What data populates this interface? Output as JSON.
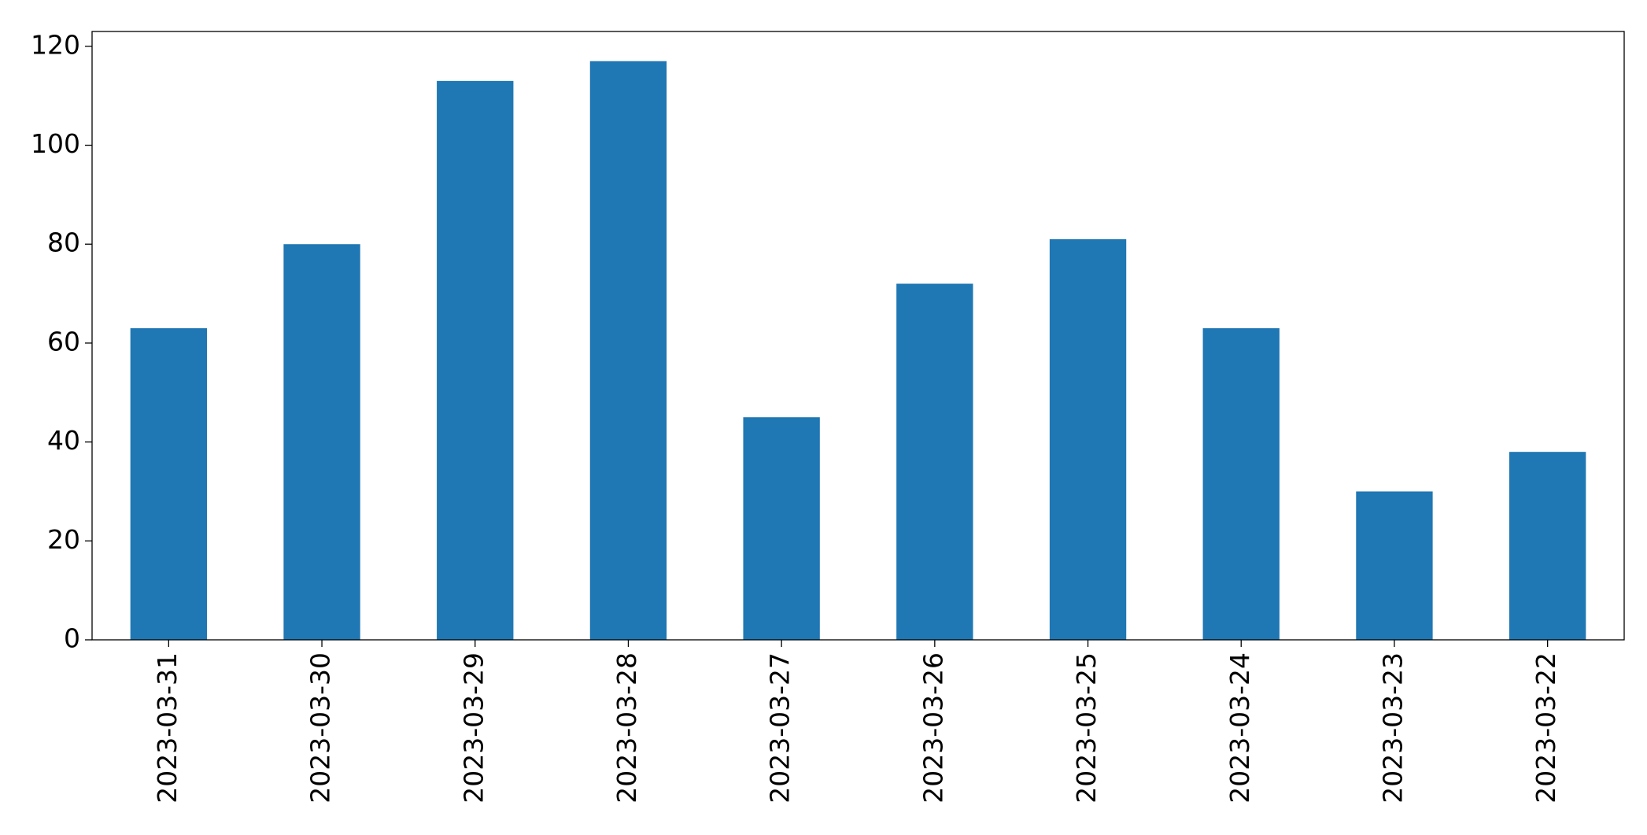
{
  "chart_data": {
    "type": "bar",
    "categories": [
      "2023-03-31",
      "2023-03-30",
      "2023-03-29",
      "2023-03-28",
      "2023-03-27",
      "2023-03-26",
      "2023-03-25",
      "2023-03-24",
      "2023-03-23",
      "2023-03-22"
    ],
    "values": [
      63,
      80,
      113,
      117,
      45,
      72,
      81,
      63,
      30,
      38
    ],
    "color": "#1f77b4",
    "ylim": [
      0,
      123
    ],
    "yticks": [
      0,
      20,
      40,
      60,
      80,
      100,
      120
    ],
    "grid": false
  }
}
